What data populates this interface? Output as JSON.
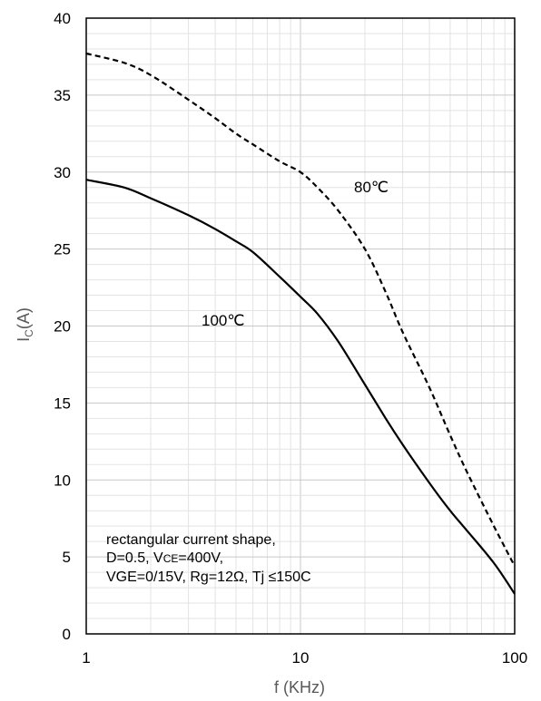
{
  "chart_data": {
    "type": "line",
    "xscale": "log",
    "xlim": [
      1,
      100
    ],
    "ylim": [
      0,
      40
    ],
    "x_ticks": [
      "1",
      "10",
      "100"
    ],
    "y_ticks": [
      "0",
      "5",
      "10",
      "15",
      "20",
      "25",
      "30",
      "35",
      "40"
    ],
    "xlabel": "f (KHz)",
    "ylabel_main": "I",
    "ylabel_sub": "C",
    "ylabel_rest": "(A)",
    "grid": true,
    "series": [
      {
        "name": "80℃",
        "style": "dashed",
        "color": "#000000",
        "x": [
          1,
          1.5,
          2,
          3,
          4,
          5,
          6,
          8,
          10,
          12,
          15,
          20,
          25,
          30,
          40,
          50,
          60,
          80,
          100
        ],
        "y": [
          37.7,
          37.1,
          36.3,
          34.7,
          33.5,
          32.5,
          31.8,
          30.7,
          30.0,
          29.0,
          27.5,
          25.0,
          22.2,
          19.6,
          16.0,
          12.9,
          10.5,
          7.0,
          4.4
        ]
      },
      {
        "name": "100℃",
        "style": "solid",
        "color": "#000000",
        "x": [
          1,
          1.5,
          2,
          3,
          4,
          5,
          6,
          8,
          10,
          12,
          15,
          20,
          25,
          30,
          40,
          50,
          60,
          80,
          100
        ],
        "y": [
          29.5,
          29.0,
          28.3,
          27.2,
          26.3,
          25.5,
          24.8,
          23.2,
          21.9,
          20.8,
          19.0,
          16.2,
          14.0,
          12.3,
          9.8,
          8.0,
          6.7,
          4.6,
          2.6
        ]
      }
    ],
    "annotations": {
      "line1": "rectangular current shape,",
      "line2_a": "D=0.5,  V",
      "line2_sub": "CE",
      "line2_b": "=400V,",
      "line3": "VGE=0/15V,  Rg=12Ω,  Tj ≤150C"
    }
  }
}
